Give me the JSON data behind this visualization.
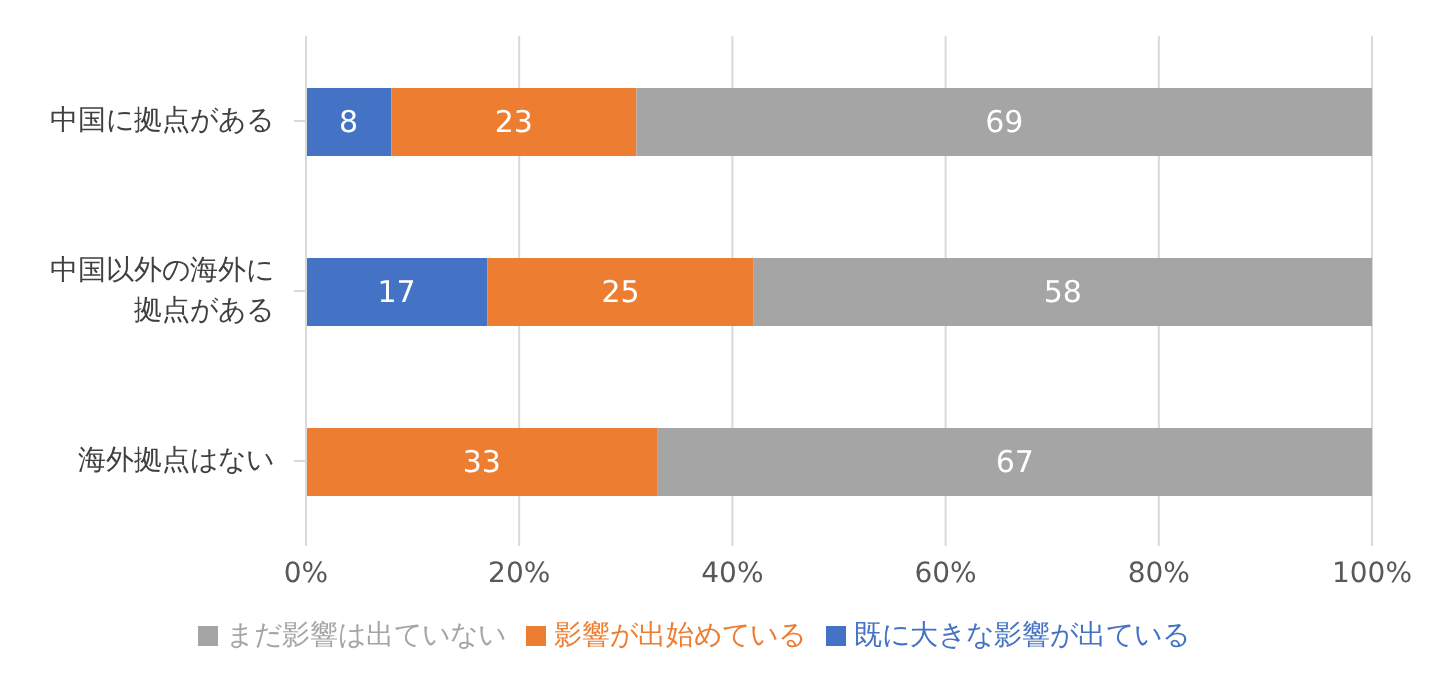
{
  "chart_data": {
    "type": "bar",
    "orientation": "horizontal",
    "stacked": true,
    "categories": [
      "中国に拠点がある",
      "中国以外の海外に拠点がある",
      "海外拠点はない"
    ],
    "series": [
      {
        "name": "既に大きな影響が出ている",
        "color": "#4472c4",
        "values": [
          8,
          17,
          0
        ],
        "value_labels": [
          "8",
          "17",
          null
        ]
      },
      {
        "name": "影響が出始めている",
        "color": "#ed7d31",
        "values": [
          23,
          25,
          33
        ],
        "value_labels": [
          "23",
          "25",
          "33"
        ]
      },
      {
        "name": "まだ影響は出ていない",
        "color": "#a5a5a5",
        "values": [
          69,
          58,
          67
        ],
        "value_labels": [
          "69",
          "58",
          "67"
        ]
      }
    ],
    "xlim": [
      0,
      100
    ],
    "xticks": [
      {
        "value": 0,
        "label": "0%"
      },
      {
        "value": 20,
        "label": "20%"
      },
      {
        "value": 40,
        "label": "40%"
      },
      {
        "value": 60,
        "label": "60%"
      },
      {
        "value": 80,
        "label": "80%"
      },
      {
        "value": 100,
        "label": "100%"
      }
    ],
    "grid": "x",
    "legend": "bottom"
  }
}
